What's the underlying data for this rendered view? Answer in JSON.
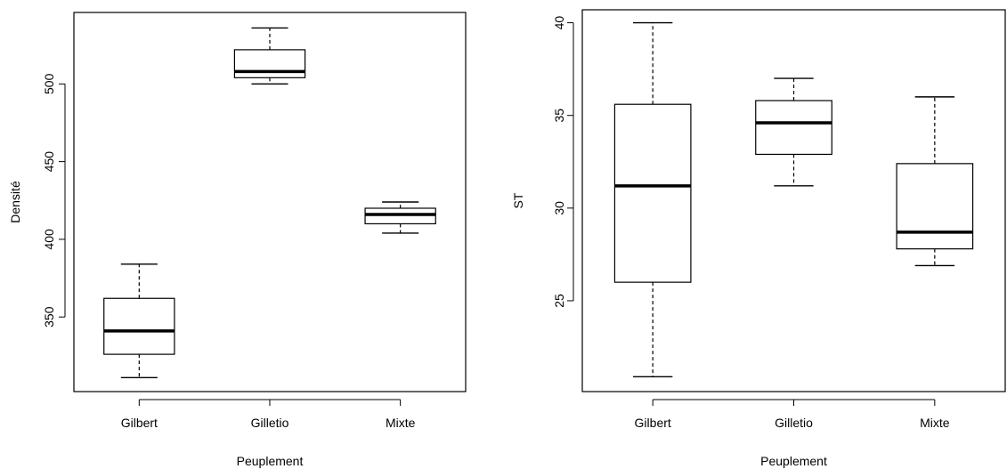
{
  "chart_data": [
    {
      "type": "boxplot",
      "xlabel": "Peuplement",
      "ylabel": "Densité",
      "ylim": [
        302,
        546
      ],
      "yticks": [
        350,
        400,
        450,
        500
      ],
      "grid": false,
      "categories": [
        "Gilbert",
        "Gilletio",
        "Mixte"
      ],
      "boxes": [
        {
          "name": "Gilbert",
          "min": 311,
          "q1": 326,
          "median": 341,
          "q3": 362,
          "max": 384
        },
        {
          "name": "Gilletio",
          "min": 500,
          "q1": 504,
          "median": 508,
          "q3": 522,
          "max": 536
        },
        {
          "name": "Mixte",
          "min": 404,
          "q1": 410,
          "median": 416,
          "q3": 420,
          "max": 424
        }
      ]
    },
    {
      "type": "boxplot",
      "xlabel": "Peuplement",
      "ylabel": "ST",
      "ylim": [
        20.1,
        40.7
      ],
      "yticks": [
        25,
        30,
        35,
        40
      ],
      "grid": false,
      "categories": [
        "Gilbert",
        "Gilletio",
        "Mixte"
      ],
      "boxes": [
        {
          "name": "Gilbert",
          "min": 20.9,
          "q1": 26.0,
          "median": 31.2,
          "q3": 35.6,
          "max": 40.0
        },
        {
          "name": "Gilletio",
          "min": 31.2,
          "q1": 32.9,
          "median": 34.6,
          "q3": 35.8,
          "max": 37.0
        },
        {
          "name": "Mixte",
          "min": 26.9,
          "q1": 27.8,
          "median": 28.7,
          "q3": 32.4,
          "max": 36.0
        }
      ]
    }
  ]
}
